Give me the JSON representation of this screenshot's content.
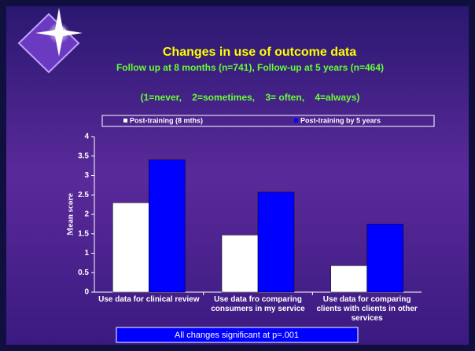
{
  "chart_data": {
    "type": "bar",
    "title": "Changes in use of outcome data",
    "subtitle": "Follow up at 8 months (n=741), Follow-up at 5 years (n=464)",
    "note": "(1=never,    2=sometimes,    3= often,    4=always)",
    "y_label": "Mean score",
    "footnote": "All changes significant at p=.001",
    "categories": [
      "Use data for clinical review",
      "Use data fro comparing consumers in my service",
      "Use data for comparing clients with clients in other services"
    ],
    "series": [
      {
        "name": "Post-training (8 mths)",
        "color": "#ffffff",
        "values": [
          2.3,
          1.47,
          0.68
        ]
      },
      {
        "name": "Post-training by 5 years",
        "color": "#0000ff",
        "values": [
          3.4,
          2.57,
          1.75
        ]
      }
    ],
    "ylim": [
      0,
      4
    ],
    "yticks": [
      0,
      0.5,
      1,
      1.5,
      2,
      2.5,
      3,
      3.5,
      4
    ]
  }
}
